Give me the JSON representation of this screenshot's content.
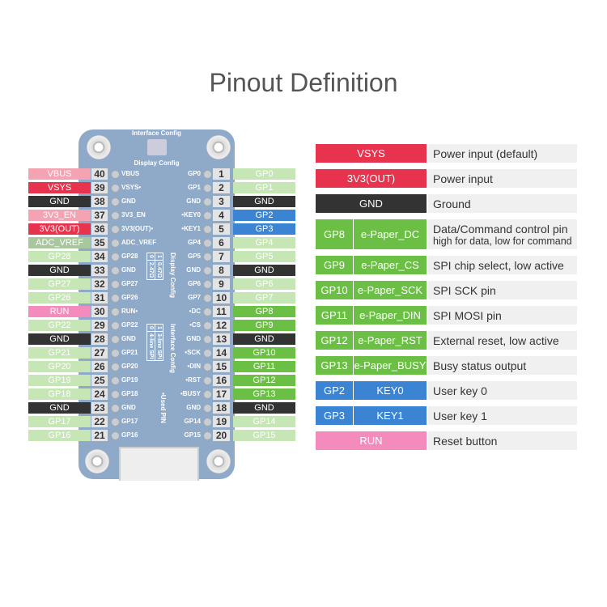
{
  "title": "Pinout Definition",
  "colors": {
    "red": "#e8334f",
    "lightpink": "#f4a3b3",
    "black": "#333333",
    "green": "#6cbf45",
    "lightgreen": "#c6e6b6",
    "blue": "#3b84d3",
    "pink": "#f48bbd",
    "sage": "#a8c79d"
  },
  "board": {
    "interface_config": "Interface Config",
    "display_config": "Display Config",
    "display_config_vertical": "Display Config",
    "display_table": [
      [
        "1",
        "0.47Ω"
      ],
      [
        "0",
        "2.47Ω"
      ]
    ],
    "interface_config_vertical": "Interface Config",
    "interface_table": [
      [
        "1",
        "3-line SPI"
      ],
      [
        "0",
        "4-line SPI"
      ]
    ],
    "used_pin": "•Used PIN"
  },
  "left_pins": [
    {
      "num": "40",
      "label": "VBUS",
      "silk": "VBUS",
      "color": "lightpink"
    },
    {
      "num": "39",
      "label": "VSYS",
      "silk": "VSYS•",
      "color": "red"
    },
    {
      "num": "38",
      "label": "GND",
      "silk": "GND",
      "color": "black"
    },
    {
      "num": "37",
      "label": "3V3_EN",
      "silk": "3V3_EN",
      "color": "lightpink"
    },
    {
      "num": "36",
      "label": "3V3(OUT)",
      "silk": "3V3(OUT)•",
      "color": "red"
    },
    {
      "num": "35",
      "label": "ADC_VREF",
      "silk": "ADC_VREF",
      "color": "sage"
    },
    {
      "num": "34",
      "label": "GP28",
      "silk": "GP28",
      "color": "lightgreen"
    },
    {
      "num": "33",
      "label": "GND",
      "silk": "GND",
      "color": "black"
    },
    {
      "num": "32",
      "label": "GP27",
      "silk": "GP27",
      "color": "lightgreen"
    },
    {
      "num": "31",
      "label": "GP26",
      "silk": "GP26",
      "color": "lightgreen"
    },
    {
      "num": "30",
      "label": "RUN",
      "silk": "RUN•",
      "color": "pink"
    },
    {
      "num": "29",
      "label": "GP22",
      "silk": "GP22",
      "color": "lightgreen"
    },
    {
      "num": "28",
      "label": "GND",
      "silk": "GND",
      "color": "black"
    },
    {
      "num": "27",
      "label": "GP21",
      "silk": "GP21",
      "color": "lightgreen"
    },
    {
      "num": "26",
      "label": "GP20",
      "silk": "GP20",
      "color": "lightgreen"
    },
    {
      "num": "25",
      "label": "GP19",
      "silk": "GP19",
      "color": "lightgreen"
    },
    {
      "num": "24",
      "label": "GP18",
      "silk": "GP18",
      "color": "lightgreen"
    },
    {
      "num": "23",
      "label": "GND",
      "silk": "GND",
      "color": "black"
    },
    {
      "num": "22",
      "label": "GP17",
      "silk": "GP17",
      "color": "lightgreen"
    },
    {
      "num": "21",
      "label": "GP16",
      "silk": "GP16",
      "color": "lightgreen"
    }
  ],
  "right_pins": [
    {
      "num": "1",
      "label": "GP0",
      "silk": "GP0",
      "color": "lightgreen"
    },
    {
      "num": "2",
      "label": "GP1",
      "silk": "GP1",
      "color": "lightgreen"
    },
    {
      "num": "3",
      "label": "GND",
      "silk": "GND",
      "color": "black"
    },
    {
      "num": "4",
      "label": "GP2",
      "silk": "•KEY0",
      "color": "blue"
    },
    {
      "num": "5",
      "label": "GP3",
      "silk": "•KEY1",
      "color": "blue"
    },
    {
      "num": "6",
      "label": "GP4",
      "silk": "GP4",
      "color": "lightgreen"
    },
    {
      "num": "7",
      "label": "GP5",
      "silk": "GP5",
      "color": "lightgreen"
    },
    {
      "num": "8",
      "label": "GND",
      "silk": "GND",
      "color": "black"
    },
    {
      "num": "9",
      "label": "GP6",
      "silk": "GP6",
      "color": "lightgreen"
    },
    {
      "num": "10",
      "label": "GP7",
      "silk": "GP7",
      "color": "lightgreen"
    },
    {
      "num": "11",
      "label": "GP8",
      "silk": "•DC",
      "color": "green"
    },
    {
      "num": "12",
      "label": "GP9",
      "silk": "•CS",
      "color": "green"
    },
    {
      "num": "13",
      "label": "GND",
      "silk": "GND",
      "color": "black"
    },
    {
      "num": "14",
      "label": "GP10",
      "silk": "•SCK",
      "color": "green"
    },
    {
      "num": "15",
      "label": "GP11",
      "silk": "•DIN",
      "color": "green"
    },
    {
      "num": "16",
      "label": "GP12",
      "silk": "•RST",
      "color": "green"
    },
    {
      "num": "17",
      "label": "GP13",
      "silk": "•BUSY",
      "color": "green"
    },
    {
      "num": "18",
      "label": "GND",
      "silk": "GND",
      "color": "black"
    },
    {
      "num": "19",
      "label": "GP14",
      "silk": "GP14",
      "color": "lightgreen"
    },
    {
      "num": "20",
      "label": "GP15",
      "silk": "GP15",
      "color": "lightgreen"
    }
  ],
  "legend": [
    {
      "pin": "VSYS",
      "func": "",
      "desc": "Power input (default)",
      "color": "red"
    },
    {
      "pin": "3V3(OUT)",
      "func": "",
      "desc": "Power input",
      "color": "red"
    },
    {
      "pin": "GND",
      "func": "",
      "desc": "Ground",
      "color": "black"
    },
    {
      "pin": "GP8",
      "func": "e-Paper_DC",
      "desc": "Data/Command control pin",
      "desc2": "high for data, low for command",
      "color": "green"
    },
    {
      "pin": "GP9",
      "func": "e-Paper_CS",
      "desc": "SPI chip select, low active",
      "color": "green"
    },
    {
      "pin": "GP10",
      "func": "e-Paper_SCK",
      "desc": "SPI SCK pin",
      "color": "green"
    },
    {
      "pin": "GP11",
      "func": "e-Paper_DIN",
      "desc": "SPI MOSI pin",
      "color": "green"
    },
    {
      "pin": "GP12",
      "func": "e-Paper_RST",
      "desc": "External reset, low active",
      "color": "green"
    },
    {
      "pin": "GP13",
      "func": "e-Paper_BUSY",
      "desc": "Busy status output",
      "color": "green"
    },
    {
      "pin": "GP2",
      "func": "KEY0",
      "desc": "User key 0",
      "color": "blue"
    },
    {
      "pin": "GP3",
      "func": "KEY1",
      "desc": "User key 1",
      "color": "blue"
    },
    {
      "pin": "RUN",
      "func": "",
      "desc": "Reset button",
      "color": "pink"
    }
  ]
}
